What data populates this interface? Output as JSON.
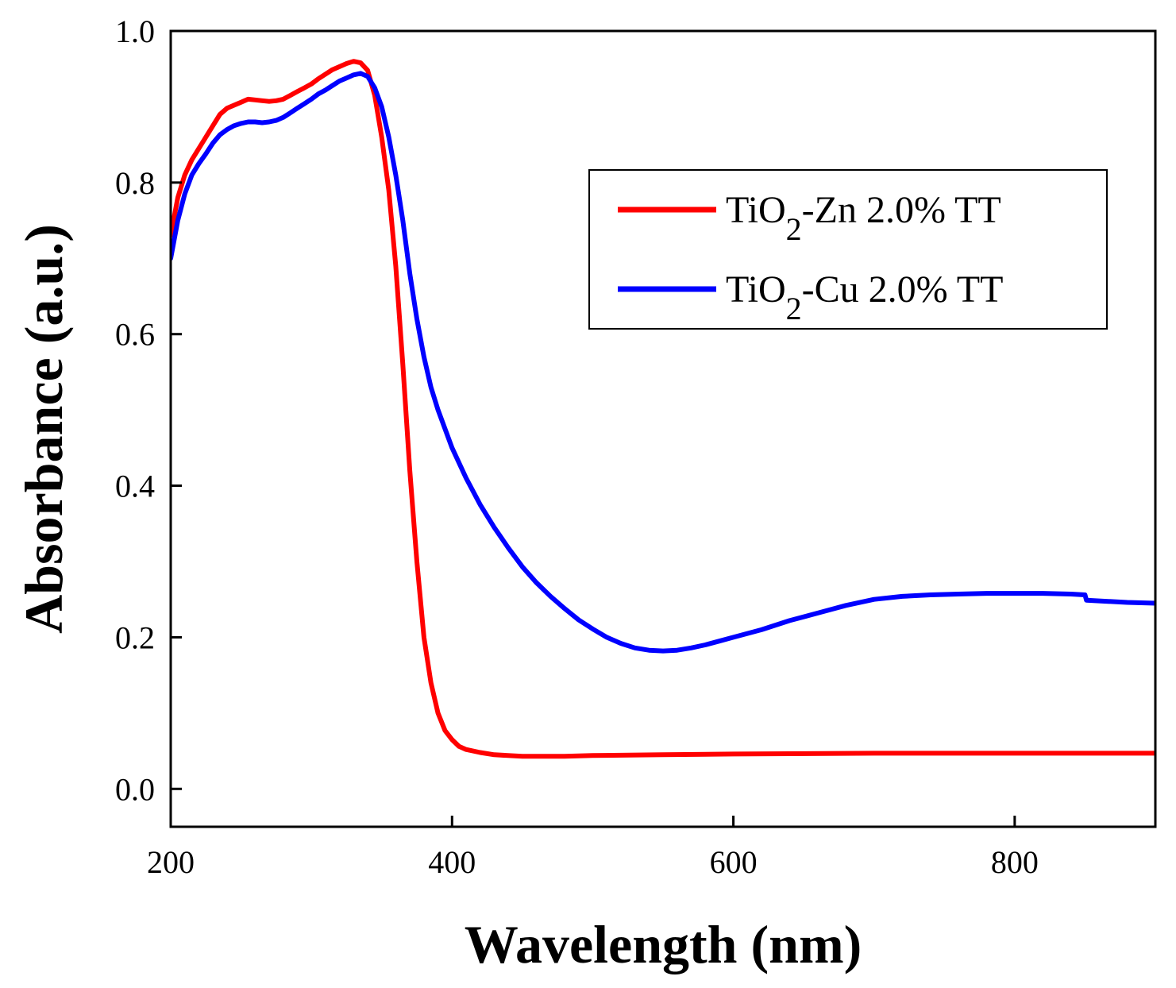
{
  "chart_data": {
    "type": "line",
    "title": "",
    "xlabel": "Wavelength (nm)",
    "ylabel": "Absorbance (a.u.)",
    "xlim": [
      200,
      900
    ],
    "ylim": [
      -0.05,
      1.0
    ],
    "x_ticks": [
      200,
      400,
      600,
      800
    ],
    "x_tick_labels": [
      "200",
      "400",
      "600",
      "800"
    ],
    "y_ticks": [
      0.0,
      0.2,
      0.4,
      0.6,
      0.8,
      1.0
    ],
    "y_tick_labels": [
      "0.0",
      "0.2",
      "0.4",
      "0.6",
      "0.8",
      "1.0"
    ],
    "grid": false,
    "legend_position": "top-right",
    "series": [
      {
        "name": "TiO2-Zn 2.0% TT",
        "label_parts": {
          "pre": "TiO",
          "sub": "2",
          "post": "-Zn 2.0% TT"
        },
        "color": "#ff0000",
        "points": [
          [
            200,
            0.73
          ],
          [
            205,
            0.78
          ],
          [
            210,
            0.81
          ],
          [
            215,
            0.83
          ],
          [
            220,
            0.845
          ],
          [
            225,
            0.86
          ],
          [
            230,
            0.875
          ],
          [
            235,
            0.89
          ],
          [
            240,
            0.898
          ],
          [
            245,
            0.902
          ],
          [
            250,
            0.906
          ],
          [
            255,
            0.91
          ],
          [
            260,
            0.909
          ],
          [
            265,
            0.908
          ],
          [
            270,
            0.907
          ],
          [
            275,
            0.908
          ],
          [
            280,
            0.91
          ],
          [
            285,
            0.915
          ],
          [
            290,
            0.92
          ],
          [
            295,
            0.925
          ],
          [
            300,
            0.93
          ],
          [
            305,
            0.937
          ],
          [
            310,
            0.943
          ],
          [
            315,
            0.949
          ],
          [
            320,
            0.953
          ],
          [
            325,
            0.957
          ],
          [
            330,
            0.96
          ],
          [
            335,
            0.958
          ],
          [
            340,
            0.948
          ],
          [
            345,
            0.915
          ],
          [
            350,
            0.86
          ],
          [
            355,
            0.79
          ],
          [
            360,
            0.69
          ],
          [
            365,
            0.56
          ],
          [
            370,
            0.42
          ],
          [
            375,
            0.3
          ],
          [
            380,
            0.2
          ],
          [
            385,
            0.14
          ],
          [
            390,
            0.1
          ],
          [
            395,
            0.077
          ],
          [
            400,
            0.065
          ],
          [
            405,
            0.056
          ],
          [
            410,
            0.052
          ],
          [
            420,
            0.048
          ],
          [
            430,
            0.045
          ],
          [
            450,
            0.043
          ],
          [
            480,
            0.043
          ],
          [
            500,
            0.044
          ],
          [
            550,
            0.045
          ],
          [
            600,
            0.046
          ],
          [
            700,
            0.047
          ],
          [
            800,
            0.047
          ],
          [
            900,
            0.047
          ]
        ]
      },
      {
        "name": "TiO2-Cu 2.0% TT",
        "label_parts": {
          "pre": "TiO",
          "sub": "2",
          "post": "-Cu 2.0% TT"
        },
        "color": "#0000ff",
        "points": [
          [
            200,
            0.7
          ],
          [
            205,
            0.75
          ],
          [
            210,
            0.785
          ],
          [
            215,
            0.81
          ],
          [
            220,
            0.825
          ],
          [
            225,
            0.838
          ],
          [
            230,
            0.852
          ],
          [
            235,
            0.863
          ],
          [
            240,
            0.87
          ],
          [
            245,
            0.875
          ],
          [
            250,
            0.878
          ],
          [
            255,
            0.88
          ],
          [
            260,
            0.88
          ],
          [
            265,
            0.879
          ],
          [
            270,
            0.88
          ],
          [
            275,
            0.882
          ],
          [
            280,
            0.886
          ],
          [
            285,
            0.892
          ],
          [
            290,
            0.898
          ],
          [
            295,
            0.904
          ],
          [
            300,
            0.91
          ],
          [
            305,
            0.917
          ],
          [
            310,
            0.922
          ],
          [
            315,
            0.928
          ],
          [
            320,
            0.934
          ],
          [
            325,
            0.938
          ],
          [
            330,
            0.942
          ],
          [
            335,
            0.944
          ],
          [
            340,
            0.94
          ],
          [
            345,
            0.925
          ],
          [
            350,
            0.9
          ],
          [
            355,
            0.86
          ],
          [
            360,
            0.81
          ],
          [
            365,
            0.75
          ],
          [
            370,
            0.68
          ],
          [
            375,
            0.62
          ],
          [
            380,
            0.57
          ],
          [
            385,
            0.53
          ],
          [
            390,
            0.5
          ],
          [
            400,
            0.45
          ],
          [
            410,
            0.41
          ],
          [
            420,
            0.375
          ],
          [
            430,
            0.345
          ],
          [
            440,
            0.318
          ],
          [
            450,
            0.293
          ],
          [
            460,
            0.272
          ],
          [
            470,
            0.254
          ],
          [
            480,
            0.238
          ],
          [
            490,
            0.223
          ],
          [
            500,
            0.211
          ],
          [
            510,
            0.2
          ],
          [
            520,
            0.192
          ],
          [
            530,
            0.186
          ],
          [
            540,
            0.183
          ],
          [
            550,
            0.182
          ],
          [
            560,
            0.183
          ],
          [
            570,
            0.186
          ],
          [
            580,
            0.19
          ],
          [
            590,
            0.195
          ],
          [
            600,
            0.2
          ],
          [
            620,
            0.21
          ],
          [
            640,
            0.222
          ],
          [
            660,
            0.232
          ],
          [
            680,
            0.242
          ],
          [
            700,
            0.25
          ],
          [
            720,
            0.254
          ],
          [
            740,
            0.256
          ],
          [
            760,
            0.257
          ],
          [
            780,
            0.258
          ],
          [
            800,
            0.258
          ],
          [
            820,
            0.258
          ],
          [
            840,
            0.257
          ],
          [
            850,
            0.256
          ],
          [
            851,
            0.249
          ],
          [
            860,
            0.248
          ],
          [
            880,
            0.246
          ],
          [
            900,
            0.245
          ]
        ]
      }
    ]
  }
}
